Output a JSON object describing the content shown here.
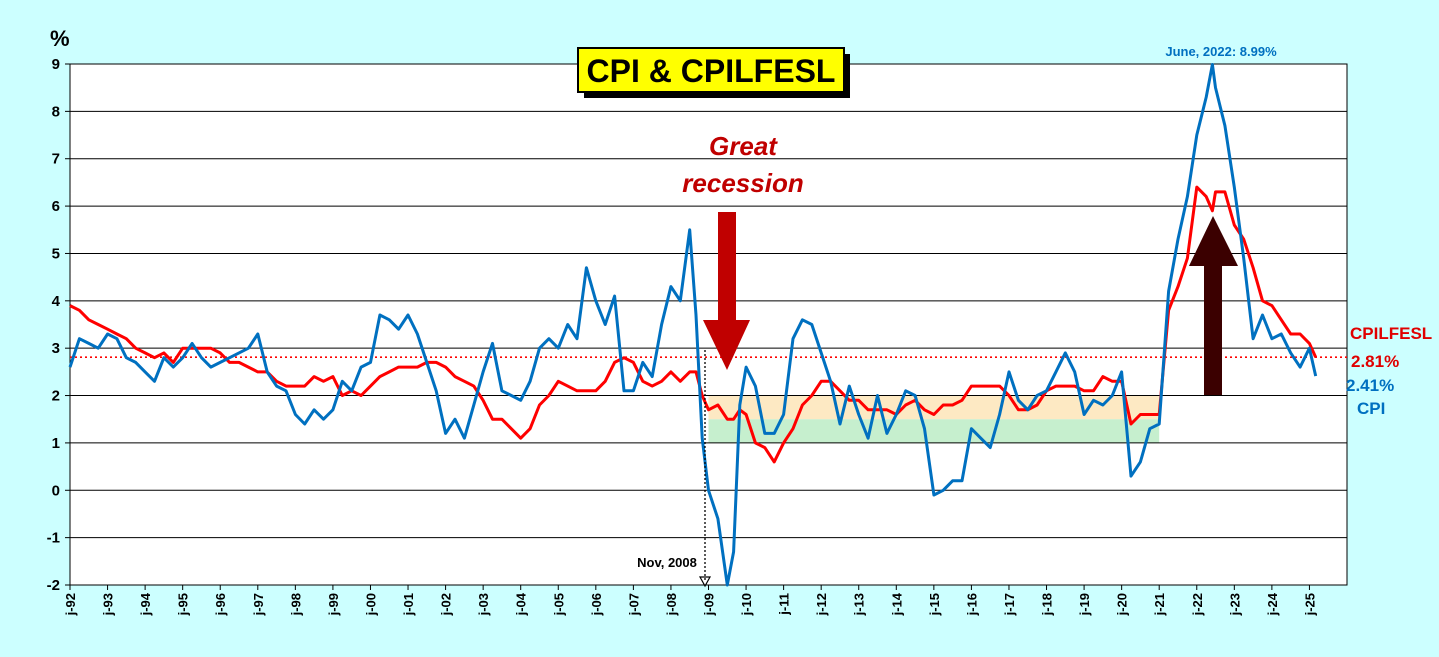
{
  "chart_data": {
    "type": "line",
    "title": "CPI & CPILFESL",
    "ylabel": "%",
    "ylim": [
      -2,
      9
    ],
    "y_ticks": [
      "9",
      "8",
      "7",
      "6",
      "5",
      "4",
      "3",
      "2",
      "1",
      "0",
      "-1",
      "-2"
    ],
    "x_ticks": [
      "j-92",
      "j-93",
      "j-94",
      "j-95",
      "j-96",
      "j-97",
      "j-98",
      "j-99",
      "j-00",
      "j-01",
      "j-02",
      "j-03",
      "j-04",
      "j-05",
      "j-06",
      "j-07",
      "j-08",
      "j-09",
      "j-10",
      "j-11",
      "j-12",
      "j-13",
      "j-14",
      "j-15",
      "j-16",
      "j-17",
      "j-18",
      "j-19",
      "j-20",
      "j-21",
      "j-22",
      "j-23",
      "j-24",
      "j-25"
    ],
    "x_range": [
      1992.0,
      2026.0
    ],
    "grid": true,
    "series": [
      {
        "name": "CPI",
        "color": "#0070c0",
        "end_label": "2.41%",
        "points": [
          [
            1992.0,
            2.6
          ],
          [
            1992.25,
            3.2
          ],
          [
            1992.5,
            3.1
          ],
          [
            1992.75,
            3.0
          ],
          [
            1993.0,
            3.3
          ],
          [
            1993.25,
            3.2
          ],
          [
            1993.5,
            2.8
          ],
          [
            1993.75,
            2.7
          ],
          [
            1994.0,
            2.5
          ],
          [
            1994.25,
            2.3
          ],
          [
            1994.5,
            2.8
          ],
          [
            1994.75,
            2.6
          ],
          [
            1995.0,
            2.8
          ],
          [
            1995.25,
            3.1
          ],
          [
            1995.5,
            2.8
          ],
          [
            1995.75,
            2.6
          ],
          [
            1996.0,
            2.7
          ],
          [
            1996.25,
            2.8
          ],
          [
            1996.5,
            2.9
          ],
          [
            1996.75,
            3.0
          ],
          [
            1997.0,
            3.3
          ],
          [
            1997.25,
            2.5
          ],
          [
            1997.5,
            2.2
          ],
          [
            1997.75,
            2.1
          ],
          [
            1998.0,
            1.6
          ],
          [
            1998.25,
            1.4
          ],
          [
            1998.5,
            1.7
          ],
          [
            1998.75,
            1.5
          ],
          [
            1999.0,
            1.7
          ],
          [
            1999.25,
            2.3
          ],
          [
            1999.5,
            2.1
          ],
          [
            1999.75,
            2.6
          ],
          [
            2000.0,
            2.7
          ],
          [
            2000.25,
            3.7
          ],
          [
            2000.5,
            3.6
          ],
          [
            2000.75,
            3.4
          ],
          [
            2001.0,
            3.7
          ],
          [
            2001.25,
            3.3
          ],
          [
            2001.5,
            2.7
          ],
          [
            2001.75,
            2.1
          ],
          [
            2002.0,
            1.2
          ],
          [
            2002.25,
            1.5
          ],
          [
            2002.5,
            1.1
          ],
          [
            2002.75,
            1.8
          ],
          [
            2003.0,
            2.5
          ],
          [
            2003.25,
            3.1
          ],
          [
            2003.5,
            2.1
          ],
          [
            2003.75,
            2.0
          ],
          [
            2004.0,
            1.9
          ],
          [
            2004.25,
            2.3
          ],
          [
            2004.5,
            3.0
          ],
          [
            2004.75,
            3.2
          ],
          [
            2005.0,
            3.0
          ],
          [
            2005.25,
            3.5
          ],
          [
            2005.5,
            3.2
          ],
          [
            2005.75,
            4.7
          ],
          [
            2006.0,
            4.0
          ],
          [
            2006.25,
            3.5
          ],
          [
            2006.5,
            4.1
          ],
          [
            2006.75,
            2.1
          ],
          [
            2007.0,
            2.1
          ],
          [
            2007.25,
            2.7
          ],
          [
            2007.5,
            2.4
          ],
          [
            2007.75,
            3.5
          ],
          [
            2008.0,
            4.3
          ],
          [
            2008.25,
            4.0
          ],
          [
            2008.5,
            5.5
          ],
          [
            2008.667,
            3.7
          ],
          [
            2008.833,
            1.1
          ],
          [
            2009.0,
            0.0
          ],
          [
            2009.25,
            -0.6
          ],
          [
            2009.5,
            -2.0
          ],
          [
            2009.667,
            -1.3
          ],
          [
            2009.833,
            1.8
          ],
          [
            2010.0,
            2.6
          ],
          [
            2010.25,
            2.2
          ],
          [
            2010.5,
            1.2
          ],
          [
            2010.75,
            1.2
          ],
          [
            2011.0,
            1.6
          ],
          [
            2011.25,
            3.2
          ],
          [
            2011.5,
            3.6
          ],
          [
            2011.75,
            3.5
          ],
          [
            2012.0,
            2.9
          ],
          [
            2012.25,
            2.3
          ],
          [
            2012.5,
            1.4
          ],
          [
            2012.75,
            2.2
          ],
          [
            2013.0,
            1.6
          ],
          [
            2013.25,
            1.1
          ],
          [
            2013.5,
            2.0
          ],
          [
            2013.75,
            1.2
          ],
          [
            2014.0,
            1.6
          ],
          [
            2014.25,
            2.1
          ],
          [
            2014.5,
            2.0
          ],
          [
            2014.75,
            1.3
          ],
          [
            2015.0,
            -0.1
          ],
          [
            2015.25,
            0.0
          ],
          [
            2015.5,
            0.2
          ],
          [
            2015.75,
            0.2
          ],
          [
            2016.0,
            1.3
          ],
          [
            2016.25,
            1.1
          ],
          [
            2016.5,
            0.9
          ],
          [
            2016.75,
            1.6
          ],
          [
            2017.0,
            2.5
          ],
          [
            2017.25,
            1.9
          ],
          [
            2017.5,
            1.7
          ],
          [
            2017.75,
            2.0
          ],
          [
            2018.0,
            2.1
          ],
          [
            2018.25,
            2.5
          ],
          [
            2018.5,
            2.9
          ],
          [
            2018.75,
            2.5
          ],
          [
            2019.0,
            1.6
          ],
          [
            2019.25,
            1.9
          ],
          [
            2019.5,
            1.8
          ],
          [
            2019.75,
            2.0
          ],
          [
            2020.0,
            2.5
          ],
          [
            2020.25,
            0.3
          ],
          [
            2020.5,
            0.6
          ],
          [
            2020.75,
            1.3
          ],
          [
            2021.0,
            1.4
          ],
          [
            2021.25,
            4.2
          ],
          [
            2021.5,
            5.3
          ],
          [
            2021.75,
            6.2
          ],
          [
            2022.0,
            7.5
          ],
          [
            2022.25,
            8.3
          ],
          [
            2022.417,
            8.99
          ],
          [
            2022.5,
            8.5
          ],
          [
            2022.75,
            7.7
          ],
          [
            2023.0,
            6.4
          ],
          [
            2023.25,
            4.9
          ],
          [
            2023.5,
            3.2
          ],
          [
            2023.75,
            3.7
          ],
          [
            2024.0,
            3.2
          ],
          [
            2024.25,
            3.3
          ],
          [
            2024.5,
            2.9
          ],
          [
            2024.75,
            2.6
          ],
          [
            2025.0,
            3.0
          ],
          [
            2025.167,
            2.41
          ]
        ]
      },
      {
        "name": "CPILFESL",
        "color": "#ff0000",
        "end_label": "2.81%",
        "points": [
          [
            1992.0,
            3.9
          ],
          [
            1992.25,
            3.8
          ],
          [
            1992.5,
            3.6
          ],
          [
            1992.75,
            3.5
          ],
          [
            1993.0,
            3.4
          ],
          [
            1993.25,
            3.3
          ],
          [
            1993.5,
            3.2
          ],
          [
            1993.75,
            3.0
          ],
          [
            1994.0,
            2.9
          ],
          [
            1994.25,
            2.8
          ],
          [
            1994.5,
            2.9
          ],
          [
            1994.75,
            2.7
          ],
          [
            1995.0,
            3.0
          ],
          [
            1995.25,
            3.0
          ],
          [
            1995.5,
            3.0
          ],
          [
            1995.75,
            3.0
          ],
          [
            1996.0,
            2.9
          ],
          [
            1996.25,
            2.7
          ],
          [
            1996.5,
            2.7
          ],
          [
            1996.75,
            2.6
          ],
          [
            1997.0,
            2.5
          ],
          [
            1997.25,
            2.5
          ],
          [
            1997.5,
            2.3
          ],
          [
            1997.75,
            2.2
          ],
          [
            1998.0,
            2.2
          ],
          [
            1998.25,
            2.2
          ],
          [
            1998.5,
            2.4
          ],
          [
            1998.75,
            2.3
          ],
          [
            1999.0,
            2.4
          ],
          [
            1999.25,
            2.0
          ],
          [
            1999.5,
            2.1
          ],
          [
            1999.75,
            2.0
          ],
          [
            2000.0,
            2.2
          ],
          [
            2000.25,
            2.4
          ],
          [
            2000.5,
            2.5
          ],
          [
            2000.75,
            2.6
          ],
          [
            2001.0,
            2.6
          ],
          [
            2001.25,
            2.6
          ],
          [
            2001.5,
            2.7
          ],
          [
            2001.75,
            2.7
          ],
          [
            2002.0,
            2.6
          ],
          [
            2002.25,
            2.4
          ],
          [
            2002.5,
            2.3
          ],
          [
            2002.75,
            2.2
          ],
          [
            2003.0,
            1.9
          ],
          [
            2003.25,
            1.5
          ],
          [
            2003.5,
            1.5
          ],
          [
            2003.75,
            1.3
          ],
          [
            2004.0,
            1.1
          ],
          [
            2004.25,
            1.3
          ],
          [
            2004.5,
            1.8
          ],
          [
            2004.75,
            2.0
          ],
          [
            2005.0,
            2.3
          ],
          [
            2005.25,
            2.2
          ],
          [
            2005.5,
            2.1
          ],
          [
            2005.75,
            2.1
          ],
          [
            2006.0,
            2.1
          ],
          [
            2006.25,
            2.3
          ],
          [
            2006.5,
            2.7
          ],
          [
            2006.75,
            2.8
          ],
          [
            2007.0,
            2.7
          ],
          [
            2007.25,
            2.3
          ],
          [
            2007.5,
            2.2
          ],
          [
            2007.75,
            2.3
          ],
          [
            2008.0,
            2.5
          ],
          [
            2008.25,
            2.3
          ],
          [
            2008.5,
            2.5
          ],
          [
            2008.667,
            2.5
          ],
          [
            2008.833,
            2.0
          ],
          [
            2009.0,
            1.7
          ],
          [
            2009.25,
            1.8
          ],
          [
            2009.5,
            1.5
          ],
          [
            2009.667,
            1.5
          ],
          [
            2009.833,
            1.7
          ],
          [
            2010.0,
            1.6
          ],
          [
            2010.25,
            1.0
          ],
          [
            2010.5,
            0.9
          ],
          [
            2010.75,
            0.6
          ],
          [
            2011.0,
            1.0
          ],
          [
            2011.25,
            1.3
          ],
          [
            2011.5,
            1.8
          ],
          [
            2011.75,
            2.0
          ],
          [
            2012.0,
            2.3
          ],
          [
            2012.25,
            2.3
          ],
          [
            2012.5,
            2.1
          ],
          [
            2012.75,
            1.9
          ],
          [
            2013.0,
            1.9
          ],
          [
            2013.25,
            1.7
          ],
          [
            2013.5,
            1.7
          ],
          [
            2013.75,
            1.7
          ],
          [
            2014.0,
            1.6
          ],
          [
            2014.25,
            1.8
          ],
          [
            2014.5,
            1.9
          ],
          [
            2014.75,
            1.7
          ],
          [
            2015.0,
            1.6
          ],
          [
            2015.25,
            1.8
          ],
          [
            2015.5,
            1.8
          ],
          [
            2015.75,
            1.9
          ],
          [
            2016.0,
            2.2
          ],
          [
            2016.25,
            2.2
          ],
          [
            2016.5,
            2.2
          ],
          [
            2016.75,
            2.2
          ],
          [
            2017.0,
            2.0
          ],
          [
            2017.25,
            1.7
          ],
          [
            2017.5,
            1.7
          ],
          [
            2017.75,
            1.8
          ],
          [
            2018.0,
            2.1
          ],
          [
            2018.25,
            2.2
          ],
          [
            2018.5,
            2.2
          ],
          [
            2018.75,
            2.2
          ],
          [
            2019.0,
            2.1
          ],
          [
            2019.25,
            2.1
          ],
          [
            2019.5,
            2.4
          ],
          [
            2019.75,
            2.3
          ],
          [
            2020.0,
            2.3
          ],
          [
            2020.25,
            1.4
          ],
          [
            2020.5,
            1.6
          ],
          [
            2020.75,
            1.6
          ],
          [
            2021.0,
            1.6
          ],
          [
            2021.25,
            3.8
          ],
          [
            2021.5,
            4.3
          ],
          [
            2021.75,
            4.9
          ],
          [
            2022.0,
            6.4
          ],
          [
            2022.25,
            6.2
          ],
          [
            2022.417,
            5.9
          ],
          [
            2022.5,
            6.3
          ],
          [
            2022.75,
            6.3
          ],
          [
            2023.0,
            5.6
          ],
          [
            2023.25,
            5.3
          ],
          [
            2023.5,
            4.7
          ],
          [
            2023.75,
            4.0
          ],
          [
            2024.0,
            3.9
          ],
          [
            2024.25,
            3.6
          ],
          [
            2024.5,
            3.3
          ],
          [
            2024.75,
            3.3
          ],
          [
            2025.0,
            3.1
          ],
          [
            2025.167,
            2.81
          ]
        ]
      }
    ],
    "reference_line": {
      "value": 2.81,
      "color": "#ff0000",
      "style": "dotted"
    },
    "bands": [
      {
        "x": [
          2009.0,
          2021.0
        ],
        "y": [
          1.5,
          2.0
        ],
        "color": "#fde9c3"
      },
      {
        "x": [
          2009.0,
          2021.0
        ],
        "y": [
          1.0,
          1.5
        ],
        "color": "#c6efce"
      }
    ],
    "annotations": {
      "title": "CPI & CPILFESL",
      "great_recession": [
        "Great",
        "recession"
      ],
      "peak_label": "June, 2022: 8.99%",
      "nov_label": "Nov, 2008",
      "cpilfesl_name": "CPILFESL",
      "cpilfesl_value": "2.81%",
      "cpi_value": "2.41%",
      "cpi_name": "CPI"
    }
  }
}
